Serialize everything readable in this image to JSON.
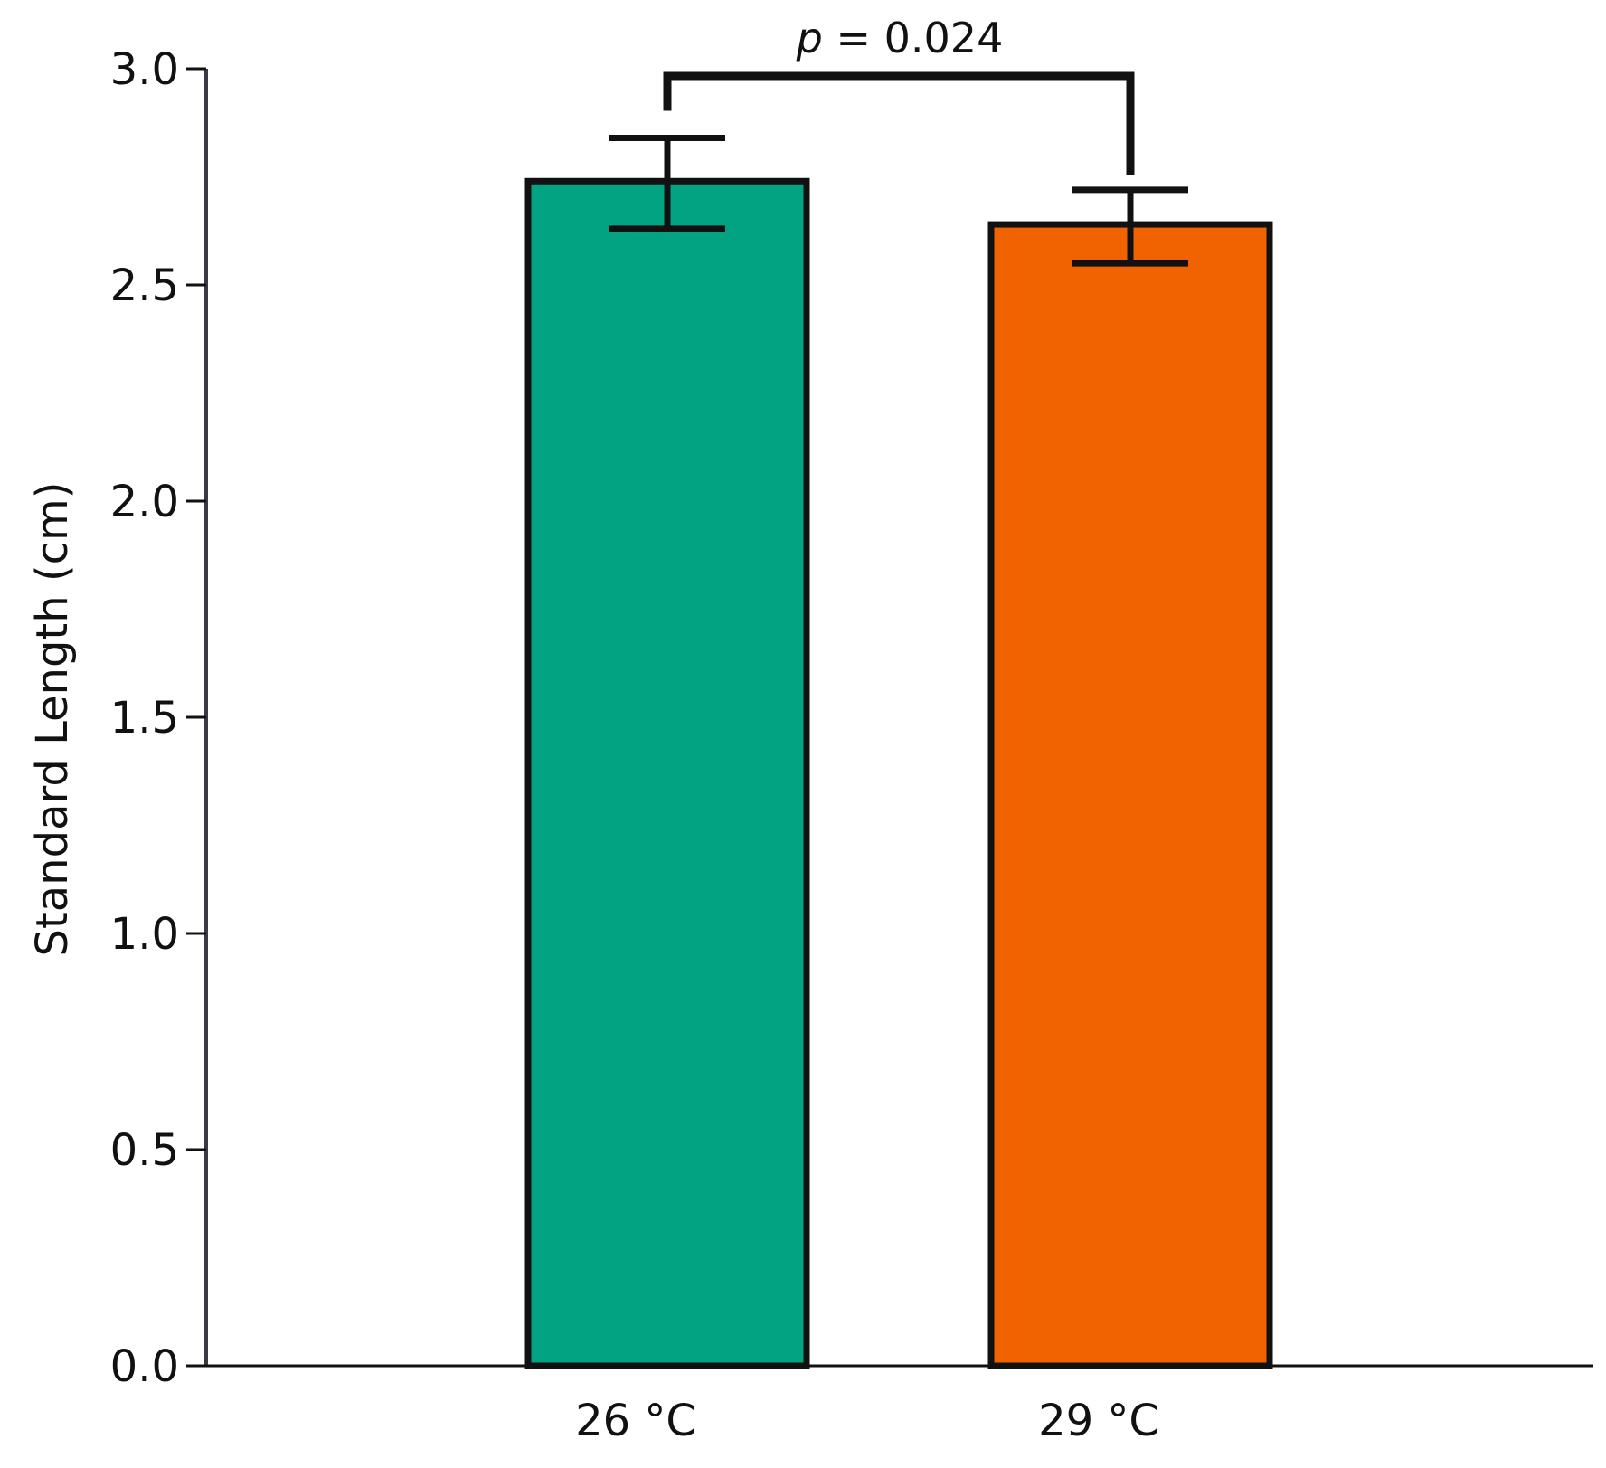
{
  "chart_data": {
    "type": "bar",
    "title": "",
    "xlabel": "",
    "ylabel": "Standard Length (cm)",
    "ylim": [
      0,
      3.0
    ],
    "yticks": [
      "0.0",
      "0.5",
      "1.0",
      "1.5",
      "2.0",
      "2.5",
      "3.0"
    ],
    "categories": [
      "26 °C",
      "29 °C"
    ],
    "values": [
      2.74,
      2.64
    ],
    "error_low": [
      2.63,
      2.55
    ],
    "error_high": [
      2.84,
      2.72
    ],
    "colors": [
      "#02a383",
      "#f16300"
    ],
    "grid": false,
    "legend": "none",
    "annotations": {
      "significance": {
        "p_symbol": "p",
        "p_text": " = 0.024",
        "between": [
          "26 °C",
          "29 °C"
        ]
      }
    }
  }
}
